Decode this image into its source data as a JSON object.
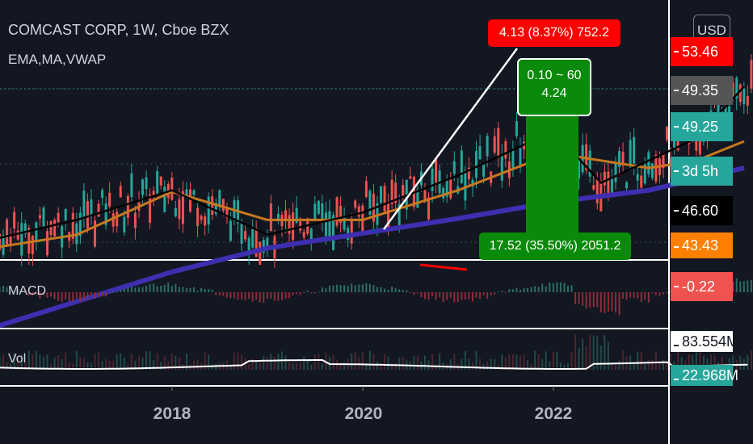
{
  "header": {
    "title": "COMCAST CORP, 1W, Cboe BZX",
    "indicators": "EMA,MA,VWAP",
    "currency": "USD"
  },
  "panes": {
    "macd_label": "MACD",
    "vol_label": "Vol"
  },
  "price_tags": {
    "top": "53.46",
    "last": "49.35",
    "prev": "49.25",
    "countdown": "3d 5h",
    "crosshair": "46.60",
    "ema": "43.43",
    "macd": "-0.22",
    "vol_high": "83.554M",
    "vol_low": "22.968M"
  },
  "measure": {
    "top_label": "4.13 (8.37%) 752.2",
    "ratio_line1": "0.10 ~ 60",
    "ratio_line2": "4.24",
    "bottom_label": "17.52 (35.50%) 2051.2"
  },
  "colors": {
    "background": "#131722",
    "up_candle": "#26a69a",
    "down_candle": "#ef5350",
    "ema_line": "#000000",
    "ma_line": "#c8781f",
    "vwap_line": "#3d2fb0",
    "trendline": "#ffffff",
    "target_zone": "#0a8a0a",
    "stop_zone": "#e00000"
  },
  "chart_data": {
    "type": "line",
    "title": "COMCAST CORP, 1W, Cboe BZX",
    "xlabel": "",
    "ylabel": "",
    "x_ticks": [
      "2018",
      "2020",
      "2022"
    ],
    "y_range_main": [
      40,
      56
    ],
    "grid": true,
    "series": [
      {
        "name": "EMA",
        "x": [
          2017.0,
          2017.5,
          2018.0,
          2018.5,
          2019.0,
          2019.5,
          2020.0,
          2020.25,
          2020.5,
          2020.75,
          2021.0
        ],
        "values": [
          40.0,
          41.5,
          43.5,
          40.5,
          42.0,
          44.5,
          47.5,
          44.0,
          45.5,
          47.0,
          50.5
        ]
      },
      {
        "name": "MA",
        "x": [
          2017.0,
          2017.5,
          2018.0,
          2018.5,
          2019.0,
          2019.5,
          2020.0,
          2020.25,
          2020.5,
          2020.75,
          2021.0
        ],
        "values": [
          39.5,
          40.5,
          43.4,
          41.5,
          41.5,
          43.5,
          46.0,
          45.5,
          45.0,
          45.5,
          46.8
        ]
      },
      {
        "name": "VWAP",
        "x": [
          2017.0,
          2017.5,
          2018.0,
          2018.5,
          2019.0,
          2019.5,
          2020.0,
          2020.5,
          2021.0
        ],
        "values": [
          34.0,
          36.0,
          38.0,
          39.6,
          40.6,
          41.6,
          42.7,
          43.5,
          45.0
        ]
      }
    ]
  }
}
